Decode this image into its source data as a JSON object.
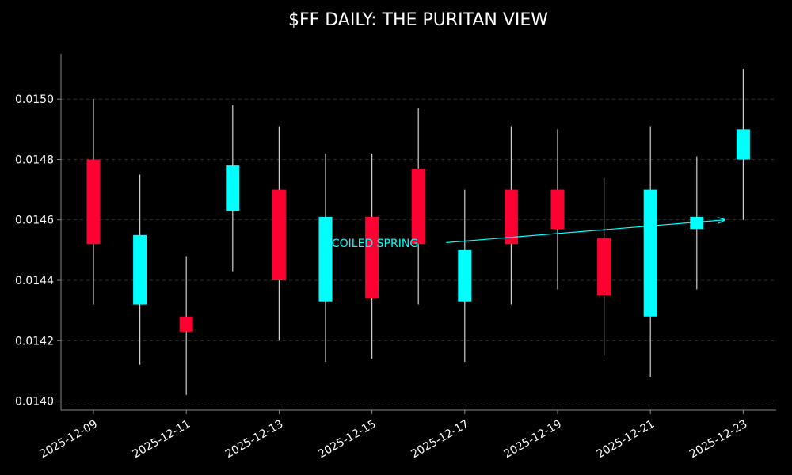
{
  "chart_data": {
    "type": "candlestick",
    "title": "$FF DAILY: THE PURITAN VIEW",
    "xlabel": "",
    "ylabel": "",
    "ylim": [
      0.01397,
      0.01515
    ],
    "grid": true,
    "y_ticks": [
      "0.0140",
      "0.0142",
      "0.0144",
      "0.0146",
      "0.0148",
      "0.0150"
    ],
    "x_ticks": [
      "2025-12-09",
      "2025-12-11",
      "2025-12-13",
      "2025-12-15",
      "2025-12-17",
      "2025-12-19",
      "2025-12-21",
      "2025-12-23"
    ],
    "colors": {
      "up": "#00ffff",
      "down": "#ff0033",
      "wick": "#d0d0d0",
      "grid": "#3a3a3a",
      "axis": "#888888",
      "background": "#000000",
      "annotation": "#00ffff"
    },
    "candles": [
      {
        "date": "2025-12-09",
        "open": 0.0148,
        "high": 0.015,
        "low": 0.01432,
        "close": 0.01452
      },
      {
        "date": "2025-12-10",
        "open": 0.01432,
        "high": 0.01475,
        "low": 0.01412,
        "close": 0.01455
      },
      {
        "date": "2025-12-11",
        "open": 0.01428,
        "high": 0.01448,
        "low": 0.01402,
        "close": 0.01423
      },
      {
        "date": "2025-12-12",
        "open": 0.01463,
        "high": 0.01498,
        "low": 0.01443,
        "close": 0.01478
      },
      {
        "date": "2025-12-13",
        "open": 0.0147,
        "high": 0.01491,
        "low": 0.0142,
        "close": 0.0144
      },
      {
        "date": "2025-12-14",
        "open": 0.01433,
        "high": 0.01482,
        "low": 0.01413,
        "close": 0.01461
      },
      {
        "date": "2025-12-15",
        "open": 0.01461,
        "high": 0.01482,
        "low": 0.01414,
        "close": 0.01434
      },
      {
        "date": "2025-12-16",
        "open": 0.01477,
        "high": 0.01497,
        "low": 0.01432,
        "close": 0.01452
      },
      {
        "date": "2025-12-17",
        "open": 0.01433,
        "high": 0.0147,
        "low": 0.01413,
        "close": 0.0145
      },
      {
        "date": "2025-12-18",
        "open": 0.0147,
        "high": 0.01491,
        "low": 0.01432,
        "close": 0.01452
      },
      {
        "date": "2025-12-19",
        "open": 0.0147,
        "high": 0.0149,
        "low": 0.01437,
        "close": 0.01457
      },
      {
        "date": "2025-12-20",
        "open": 0.01454,
        "high": 0.01474,
        "low": 0.01415,
        "close": 0.01435
      },
      {
        "date": "2025-12-21",
        "open": 0.01428,
        "high": 0.01491,
        "low": 0.01408,
        "close": 0.0147
      },
      {
        "date": "2025-12-22",
        "open": 0.01457,
        "high": 0.01481,
        "low": 0.01437,
        "close": 0.01461
      },
      {
        "date": "2025-12-23",
        "open": 0.0148,
        "high": 0.0151,
        "low": 0.0146,
        "close": 0.0149
      }
    ],
    "annotations": [
      {
        "text": "COILED SPRING",
        "text_date": "2025-12-16",
        "text_value": 0.01451,
        "arrow_from_date": "2025-12-16.6",
        "arrow_from_value": 0.014525,
        "arrow_to_date": "2025-12-22.6",
        "arrow_to_value": 0.0146
      }
    ]
  }
}
